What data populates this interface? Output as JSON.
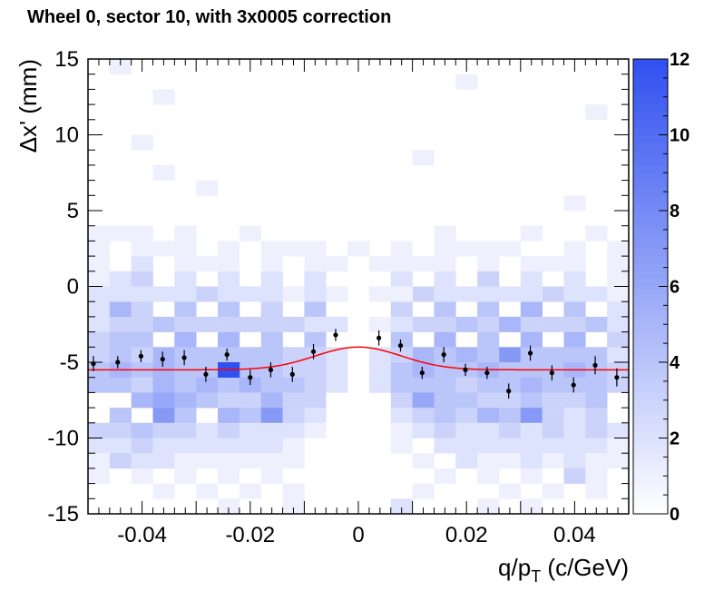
{
  "chart_data": {
    "type": "heatmap",
    "title": "Wheel 0, sector 10, with 3x0005 correction",
    "xlabel": "q/p_T (c/GeV)",
    "ylabel": "Δx' (mm)",
    "xlim": [
      -0.05,
      0.05
    ],
    "ylim": [
      -15,
      15
    ],
    "zlim": [
      0,
      12
    ],
    "x_ticks": [
      "-0.04",
      "-0.02",
      "0",
      "0.02",
      "0.04"
    ],
    "y_ticks": [
      "-15",
      "-10",
      "-5",
      "0",
      "5",
      "10",
      "15"
    ],
    "z_ticks": [
      "0",
      "2",
      "4",
      "6",
      "8",
      "10",
      "12"
    ],
    "colors": {
      "low": "#ffffff",
      "high": "#3050f0",
      "fit": "#ff0000",
      "points": "#000000"
    },
    "bins": {
      "x_bins": 25,
      "x_start": -0.05,
      "x_width": 0.004,
      "y_bins": 30,
      "y_start": -15,
      "y_width": 1
    },
    "cells": [
      [
        1,
        29,
        1
      ],
      [
        3,
        27,
        1
      ],
      [
        2,
        24,
        1
      ],
      [
        3,
        22,
        1
      ],
      [
        5,
        21,
        1
      ],
      [
        17,
        28,
        1
      ],
      [
        15,
        23,
        1
      ],
      [
        22,
        20,
        1
      ],
      [
        23,
        26,
        1
      ],
      [
        0,
        18,
        1
      ],
      [
        1,
        18,
        1
      ],
      [
        2,
        18,
        1
      ],
      [
        3,
        17,
        1
      ],
      [
        4,
        18,
        1
      ],
      [
        5,
        16,
        1
      ],
      [
        6,
        17,
        1
      ],
      [
        7,
        18,
        1
      ],
      [
        8,
        16,
        1
      ],
      [
        9,
        17,
        1
      ],
      [
        10,
        17,
        1
      ],
      [
        11,
        16,
        1
      ],
      [
        13,
        16,
        1
      ],
      [
        14,
        17,
        1
      ],
      [
        15,
        16,
        1
      ],
      [
        16,
        18,
        1
      ],
      [
        17,
        17,
        1
      ],
      [
        18,
        16,
        1
      ],
      [
        19,
        17,
        1
      ],
      [
        20,
        18,
        1
      ],
      [
        21,
        16,
        1
      ],
      [
        22,
        17,
        1
      ],
      [
        23,
        18,
        1
      ],
      [
        24,
        16,
        1
      ],
      [
        0,
        15,
        1
      ],
      [
        1,
        15,
        2
      ],
      [
        2,
        15,
        3
      ],
      [
        3,
        14,
        2
      ],
      [
        4,
        15,
        2
      ],
      [
        5,
        14,
        3
      ],
      [
        6,
        15,
        2
      ],
      [
        7,
        14,
        2
      ],
      [
        8,
        15,
        2
      ],
      [
        9,
        14,
        1
      ],
      [
        10,
        15,
        2
      ],
      [
        11,
        14,
        1
      ],
      [
        13,
        14,
        1
      ],
      [
        14,
        15,
        2
      ],
      [
        15,
        14,
        3
      ],
      [
        16,
        15,
        2
      ],
      [
        17,
        14,
        2
      ],
      [
        18,
        15,
        3
      ],
      [
        19,
        14,
        2
      ],
      [
        20,
        15,
        2
      ],
      [
        21,
        14,
        3
      ],
      [
        22,
        15,
        2
      ],
      [
        23,
        14,
        2
      ],
      [
        24,
        15,
        1
      ],
      [
        0,
        13,
        2
      ],
      [
        1,
        13,
        5
      ],
      [
        2,
        13,
        3
      ],
      [
        3,
        12,
        4
      ],
      [
        4,
        13,
        4
      ],
      [
        5,
        12,
        3
      ],
      [
        6,
        13,
        4
      ],
      [
        7,
        12,
        3
      ],
      [
        8,
        13,
        3
      ],
      [
        9,
        12,
        3
      ],
      [
        10,
        13,
        4
      ],
      [
        11,
        12,
        2
      ],
      [
        13,
        12,
        1
      ],
      [
        14,
        13,
        3
      ],
      [
        15,
        12,
        3
      ],
      [
        16,
        13,
        4
      ],
      [
        17,
        12,
        4
      ],
      [
        18,
        13,
        4
      ],
      [
        19,
        12,
        5
      ],
      [
        20,
        13,
        5
      ],
      [
        21,
        12,
        3
      ],
      [
        22,
        13,
        4
      ],
      [
        23,
        12,
        4
      ],
      [
        24,
        13,
        2
      ],
      [
        0,
        11,
        3
      ],
      [
        1,
        11,
        4
      ],
      [
        2,
        11,
        4
      ],
      [
        3,
        10,
        5
      ],
      [
        4,
        11,
        5
      ],
      [
        5,
        10,
        4
      ],
      [
        6,
        11,
        5
      ],
      [
        7,
        10,
        4
      ],
      [
        8,
        11,
        4
      ],
      [
        9,
        10,
        3
      ],
      [
        10,
        11,
        4
      ],
      [
        11,
        10,
        2
      ],
      [
        13,
        10,
        2
      ],
      [
        14,
        11,
        4
      ],
      [
        15,
        10,
        5
      ],
      [
        16,
        11,
        5
      ],
      [
        17,
        10,
        5
      ],
      [
        18,
        11,
        4
      ],
      [
        19,
        10,
        7
      ],
      [
        20,
        11,
        5
      ],
      [
        21,
        10,
        4
      ],
      [
        22,
        11,
        5
      ],
      [
        23,
        10,
        4
      ],
      [
        24,
        11,
        3
      ],
      [
        0,
        9,
        4
      ],
      [
        1,
        9,
        5
      ],
      [
        2,
        9,
        4
      ],
      [
        3,
        9,
        5
      ],
      [
        4,
        9,
        4
      ],
      [
        5,
        9,
        4
      ],
      [
        6,
        9,
        5
      ],
      [
        7,
        9,
        4
      ],
      [
        8,
        9,
        4
      ],
      [
        9,
        9,
        3
      ],
      [
        10,
        9,
        3
      ],
      [
        11,
        9,
        2
      ],
      [
        13,
        9,
        2
      ],
      [
        14,
        9,
        4
      ],
      [
        15,
        9,
        5
      ],
      [
        16,
        9,
        4
      ],
      [
        17,
        9,
        4
      ],
      [
        18,
        9,
        5
      ],
      [
        19,
        9,
        4
      ],
      [
        20,
        9,
        4
      ],
      [
        21,
        9,
        4
      ],
      [
        22,
        9,
        5
      ],
      [
        23,
        9,
        4
      ],
      [
        24,
        9,
        3
      ],
      [
        0,
        8,
        4
      ],
      [
        1,
        8,
        4
      ],
      [
        2,
        8,
        3
      ],
      [
        3,
        8,
        5
      ],
      [
        4,
        8,
        4
      ],
      [
        5,
        8,
        5
      ],
      [
        6,
        8,
        4
      ],
      [
        7,
        8,
        5
      ],
      [
        8,
        8,
        4
      ],
      [
        9,
        8,
        4
      ],
      [
        10,
        8,
        3
      ],
      [
        11,
        8,
        2
      ],
      [
        13,
        8,
        2
      ],
      [
        14,
        8,
        4
      ],
      [
        15,
        8,
        4
      ],
      [
        16,
        8,
        4
      ],
      [
        17,
        8,
        3
      ],
      [
        18,
        8,
        4
      ],
      [
        19,
        8,
        4
      ],
      [
        20,
        8,
        5
      ],
      [
        21,
        8,
        4
      ],
      [
        22,
        8,
        4
      ],
      [
        23,
        8,
        4
      ],
      [
        24,
        8,
        3
      ],
      [
        0,
        10,
        3
      ],
      [
        1,
        10,
        4
      ],
      [
        2,
        10,
        3
      ],
      [
        4,
        10,
        4
      ],
      [
        6,
        10,
        4
      ],
      [
        8,
        10,
        4
      ],
      [
        10,
        10,
        3
      ],
      [
        14,
        10,
        3
      ],
      [
        16,
        10,
        4
      ],
      [
        18,
        10,
        4
      ],
      [
        20,
        10,
        4
      ],
      [
        22,
        10,
        4
      ],
      [
        24,
        10,
        2
      ],
      [
        0,
        12,
        2
      ],
      [
        1,
        12,
        3
      ],
      [
        2,
        12,
        3
      ],
      [
        4,
        12,
        3
      ],
      [
        6,
        12,
        3
      ],
      [
        8,
        12,
        3
      ],
      [
        10,
        12,
        2
      ],
      [
        14,
        12,
        2
      ],
      [
        16,
        12,
        3
      ],
      [
        18,
        12,
        3
      ],
      [
        20,
        12,
        3
      ],
      [
        22,
        12,
        3
      ],
      [
        24,
        12,
        2
      ],
      [
        0,
        14,
        2
      ],
      [
        1,
        14,
        2
      ],
      [
        2,
        14,
        2
      ],
      [
        4,
        14,
        2
      ],
      [
        6,
        14,
        2
      ],
      [
        8,
        14,
        2
      ],
      [
        10,
        14,
        2
      ],
      [
        14,
        14,
        1
      ],
      [
        16,
        14,
        2
      ],
      [
        18,
        14,
        2
      ],
      [
        20,
        14,
        2
      ],
      [
        22,
        14,
        2
      ],
      [
        24,
        14,
        1
      ],
      [
        0,
        16,
        1
      ],
      [
        2,
        16,
        2
      ],
      [
        4,
        16,
        1
      ],
      [
        6,
        16,
        1
      ],
      [
        10,
        16,
        1
      ],
      [
        14,
        16,
        1
      ],
      [
        16,
        16,
        1
      ],
      [
        20,
        16,
        1
      ],
      [
        22,
        16,
        1
      ],
      [
        0,
        17,
        1
      ],
      [
        2,
        17,
        1
      ],
      [
        4,
        17,
        1
      ],
      [
        8,
        17,
        1
      ],
      [
        12,
        17,
        1
      ],
      [
        16,
        17,
        1
      ],
      [
        18,
        17,
        1
      ],
      [
        24,
        17,
        1
      ],
      [
        6,
        9,
        12
      ],
      [
        2,
        7,
        5
      ],
      [
        3,
        7,
        6
      ],
      [
        4,
        7,
        5
      ],
      [
        5,
        7,
        4
      ],
      [
        6,
        7,
        3
      ],
      [
        7,
        7,
        3
      ],
      [
        8,
        7,
        5
      ],
      [
        9,
        7,
        3
      ],
      [
        10,
        7,
        3
      ],
      [
        14,
        7,
        3
      ],
      [
        15,
        7,
        6
      ],
      [
        16,
        7,
        4
      ],
      [
        17,
        7,
        4
      ],
      [
        18,
        7,
        3
      ],
      [
        19,
        7,
        3
      ],
      [
        20,
        7,
        4
      ],
      [
        21,
        7,
        3
      ],
      [
        22,
        7,
        3
      ],
      [
        23,
        7,
        4
      ],
      [
        1,
        6,
        4
      ],
      [
        3,
        6,
        7
      ],
      [
        4,
        6,
        4
      ],
      [
        6,
        6,
        5
      ],
      [
        7,
        6,
        4
      ],
      [
        8,
        6,
        7
      ],
      [
        9,
        6,
        3
      ],
      [
        10,
        6,
        2
      ],
      [
        14,
        6,
        2
      ],
      [
        15,
        6,
        3
      ],
      [
        16,
        6,
        4
      ],
      [
        17,
        6,
        3
      ],
      [
        18,
        6,
        5
      ],
      [
        19,
        6,
        4
      ],
      [
        20,
        6,
        7
      ],
      [
        21,
        6,
        3
      ],
      [
        22,
        6,
        2
      ],
      [
        23,
        6,
        3
      ],
      [
        0,
        5,
        3
      ],
      [
        1,
        5,
        3
      ],
      [
        2,
        5,
        4
      ],
      [
        3,
        5,
        3
      ],
      [
        4,
        5,
        3
      ],
      [
        5,
        5,
        2
      ],
      [
        6,
        5,
        3
      ],
      [
        7,
        5,
        2
      ],
      [
        8,
        5,
        2
      ],
      [
        9,
        5,
        2
      ],
      [
        10,
        5,
        1
      ],
      [
        14,
        5,
        1
      ],
      [
        15,
        5,
        2
      ],
      [
        16,
        5,
        3
      ],
      [
        17,
        5,
        2
      ],
      [
        18,
        5,
        2
      ],
      [
        19,
        5,
        3
      ],
      [
        20,
        5,
        2
      ],
      [
        21,
        5,
        3
      ],
      [
        22,
        5,
        2
      ],
      [
        23,
        5,
        3
      ],
      [
        24,
        5,
        2
      ],
      [
        0,
        4,
        2
      ],
      [
        1,
        4,
        2
      ],
      [
        2,
        4,
        3
      ],
      [
        3,
        4,
        2
      ],
      [
        4,
        4,
        2
      ],
      [
        5,
        4,
        2
      ],
      [
        6,
        4,
        2
      ],
      [
        7,
        4,
        2
      ],
      [
        8,
        4,
        2
      ],
      [
        9,
        4,
        1
      ],
      [
        14,
        4,
        1
      ],
      [
        16,
        4,
        2
      ],
      [
        17,
        4,
        2
      ],
      [
        18,
        4,
        2
      ],
      [
        19,
        4,
        2
      ],
      [
        20,
        4,
        2
      ],
      [
        21,
        4,
        2
      ],
      [
        22,
        4,
        2
      ],
      [
        23,
        4,
        2
      ],
      [
        24,
        4,
        1
      ],
      [
        0,
        3,
        1
      ],
      [
        1,
        3,
        3
      ],
      [
        2,
        3,
        2
      ],
      [
        3,
        3,
        2
      ],
      [
        4,
        3,
        1
      ],
      [
        5,
        3,
        1
      ],
      [
        6,
        3,
        1
      ],
      [
        7,
        3,
        1
      ],
      [
        8,
        3,
        1
      ],
      [
        9,
        3,
        1
      ],
      [
        15,
        3,
        1
      ],
      [
        17,
        3,
        2
      ],
      [
        18,
        3,
        1
      ],
      [
        19,
        3,
        1
      ],
      [
        20,
        3,
        2
      ],
      [
        21,
        3,
        1
      ],
      [
        22,
        3,
        2
      ],
      [
        23,
        3,
        1
      ],
      [
        24,
        3,
        1
      ],
      [
        0,
        2,
        1
      ],
      [
        2,
        2,
        1
      ],
      [
        4,
        2,
        1
      ],
      [
        6,
        2,
        1
      ],
      [
        8,
        2,
        1
      ],
      [
        16,
        2,
        1
      ],
      [
        18,
        2,
        1
      ],
      [
        20,
        2,
        1
      ],
      [
        22,
        2,
        3
      ],
      [
        23,
        2,
        1
      ],
      [
        3,
        1,
        1
      ],
      [
        5,
        1,
        1
      ],
      [
        7,
        1,
        1
      ],
      [
        9,
        1,
        1
      ],
      [
        15,
        1,
        1
      ],
      [
        19,
        1,
        1
      ],
      [
        21,
        1,
        1
      ],
      [
        23,
        1,
        1
      ],
      [
        6,
        0,
        1
      ],
      [
        9,
        0,
        1
      ],
      [
        14,
        0,
        2
      ],
      [
        18,
        0,
        1
      ],
      [
        20,
        0,
        1
      ]
    ],
    "profile_points": [
      {
        "x": -0.049,
        "y": -5.1,
        "err": 0.5
      },
      {
        "x": -0.0445,
        "y": -5.0,
        "err": 0.4
      },
      {
        "x": -0.0402,
        "y": -4.6,
        "err": 0.4
      },
      {
        "x": -0.0362,
        "y": -4.8,
        "err": 0.5
      },
      {
        "x": -0.0322,
        "y": -4.7,
        "err": 0.5
      },
      {
        "x": -0.0282,
        "y": -5.8,
        "err": 0.5
      },
      {
        "x": -0.0243,
        "y": -4.5,
        "err": 0.4
      },
      {
        "x": -0.02,
        "y": -6.0,
        "err": 0.5
      },
      {
        "x": -0.0162,
        "y": -5.5,
        "err": 0.5
      },
      {
        "x": -0.0122,
        "y": -5.8,
        "err": 0.5
      },
      {
        "x": -0.0083,
        "y": -4.3,
        "err": 0.5
      },
      {
        "x": -0.0042,
        "y": -3.2,
        "err": 0.4
      },
      {
        "x": 0.0038,
        "y": -3.4,
        "err": 0.5
      },
      {
        "x": 0.0078,
        "y": -3.9,
        "err": 0.4
      },
      {
        "x": 0.0118,
        "y": -5.7,
        "err": 0.4
      },
      {
        "x": 0.0158,
        "y": -4.5,
        "err": 0.5
      },
      {
        "x": 0.0198,
        "y": -5.5,
        "err": 0.4
      },
      {
        "x": 0.0238,
        "y": -5.7,
        "err": 0.4
      },
      {
        "x": 0.0278,
        "y": -6.9,
        "err": 0.5
      },
      {
        "x": 0.0318,
        "y": -4.4,
        "err": 0.5
      },
      {
        "x": 0.0358,
        "y": -5.7,
        "err": 0.5
      },
      {
        "x": 0.0398,
        "y": -6.5,
        "err": 0.5
      },
      {
        "x": 0.0438,
        "y": -5.2,
        "err": 0.6
      },
      {
        "x": 0.0478,
        "y": -6.0,
        "err": 0.6
      }
    ],
    "fit": {
      "baseline": -5.5,
      "amplitude": 1.5,
      "mean": 0.0,
      "sigma": 0.008
    }
  }
}
